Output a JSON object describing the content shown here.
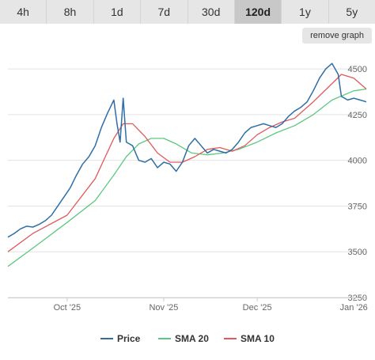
{
  "tabs": [
    {
      "label": "4h"
    },
    {
      "label": "8h"
    },
    {
      "label": "1d"
    },
    {
      "label": "7d"
    },
    {
      "label": "30d"
    },
    {
      "label": "120d",
      "active": true
    },
    {
      "label": "1y"
    },
    {
      "label": "5y"
    }
  ],
  "remove_graph_label": "remove graph",
  "chart_data": {
    "type": "line",
    "x_unit": "date",
    "x_range": [
      "2025-09-12",
      "2026-01-05"
    ],
    "ylim": [
      3250,
      4600
    ],
    "y_ticks": [
      3250,
      3500,
      3750,
      4000,
      4250,
      4500
    ],
    "x_ticks": [
      {
        "label": "Oct '25",
        "date": "2025-10-01"
      },
      {
        "label": "Nov '25",
        "date": "2025-11-01"
      },
      {
        "label": "Dec '25",
        "date": "2025-12-01"
      },
      {
        "label": "Jan '26",
        "date": "2026-01-01"
      }
    ],
    "gridlines": true,
    "legend_position": "bottom",
    "series": [
      {
        "name": "Price",
        "color": "#2f6ea5",
        "points": [
          [
            "2025-09-12",
            3580
          ],
          [
            "2025-09-14",
            3600
          ],
          [
            "2025-09-16",
            3625
          ],
          [
            "2025-09-18",
            3640
          ],
          [
            "2025-09-20",
            3635
          ],
          [
            "2025-09-22",
            3650
          ],
          [
            "2025-09-24",
            3670
          ],
          [
            "2025-09-26",
            3700
          ],
          [
            "2025-09-28",
            3750
          ],
          [
            "2025-09-30",
            3800
          ],
          [
            "2025-10-02",
            3850
          ],
          [
            "2025-10-04",
            3920
          ],
          [
            "2025-10-06",
            3980
          ],
          [
            "2025-10-08",
            4020
          ],
          [
            "2025-10-10",
            4080
          ],
          [
            "2025-10-12",
            4180
          ],
          [
            "2025-10-14",
            4260
          ],
          [
            "2025-10-16",
            4330
          ],
          [
            "2025-10-17",
            4200
          ],
          [
            "2025-10-18",
            4100
          ],
          [
            "2025-10-19",
            4340
          ],
          [
            "2025-10-20",
            4100
          ],
          [
            "2025-10-22",
            4080
          ],
          [
            "2025-10-24",
            4000
          ],
          [
            "2025-10-26",
            3990
          ],
          [
            "2025-10-28",
            4010
          ],
          [
            "2025-10-30",
            3960
          ],
          [
            "2025-11-01",
            3990
          ],
          [
            "2025-11-03",
            3980
          ],
          [
            "2025-11-05",
            3940
          ],
          [
            "2025-11-07",
            3990
          ],
          [
            "2025-11-09",
            4080
          ],
          [
            "2025-11-11",
            4120
          ],
          [
            "2025-11-13",
            4080
          ],
          [
            "2025-11-15",
            4040
          ],
          [
            "2025-11-17",
            4060
          ],
          [
            "2025-11-19",
            4050
          ],
          [
            "2025-11-21",
            4040
          ],
          [
            "2025-11-23",
            4060
          ],
          [
            "2025-11-25",
            4100
          ],
          [
            "2025-11-27",
            4150
          ],
          [
            "2025-11-29",
            4180
          ],
          [
            "2025-12-01",
            4190
          ],
          [
            "2025-12-03",
            4200
          ],
          [
            "2025-12-05",
            4190
          ],
          [
            "2025-12-07",
            4180
          ],
          [
            "2025-12-09",
            4200
          ],
          [
            "2025-12-11",
            4240
          ],
          [
            "2025-12-13",
            4270
          ],
          [
            "2025-12-15",
            4290
          ],
          [
            "2025-12-17",
            4320
          ],
          [
            "2025-12-19",
            4380
          ],
          [
            "2025-12-21",
            4450
          ],
          [
            "2025-12-23",
            4500
          ],
          [
            "2025-12-25",
            4530
          ],
          [
            "2025-12-27",
            4470
          ],
          [
            "2025-12-28",
            4350
          ],
          [
            "2025-12-30",
            4330
          ],
          [
            "2026-01-01",
            4340
          ],
          [
            "2026-01-03",
            4330
          ],
          [
            "2026-01-05",
            4320
          ]
        ]
      },
      {
        "name": "SMA 20",
        "color": "#5cc87f",
        "points": [
          [
            "2025-09-12",
            3420
          ],
          [
            "2025-09-20",
            3520
          ],
          [
            "2025-10-01",
            3660
          ],
          [
            "2025-10-10",
            3780
          ],
          [
            "2025-10-16",
            3920
          ],
          [
            "2025-10-20",
            4020
          ],
          [
            "2025-10-24",
            4090
          ],
          [
            "2025-10-28",
            4120
          ],
          [
            "2025-11-01",
            4120
          ],
          [
            "2025-11-05",
            4090
          ],
          [
            "2025-11-10",
            4040
          ],
          [
            "2025-11-15",
            4030
          ],
          [
            "2025-11-20",
            4040
          ],
          [
            "2025-11-25",
            4060
          ],
          [
            "2025-12-01",
            4100
          ],
          [
            "2025-12-07",
            4150
          ],
          [
            "2025-12-13",
            4190
          ],
          [
            "2025-12-19",
            4250
          ],
          [
            "2025-12-25",
            4330
          ],
          [
            "2026-01-01",
            4380
          ],
          [
            "2026-01-05",
            4390
          ]
        ]
      },
      {
        "name": "SMA 10",
        "color": "#e05a5a",
        "points": [
          [
            "2025-09-12",
            3500
          ],
          [
            "2025-09-20",
            3600
          ],
          [
            "2025-10-01",
            3700
          ],
          [
            "2025-10-10",
            3900
          ],
          [
            "2025-10-16",
            4120
          ],
          [
            "2025-10-19",
            4200
          ],
          [
            "2025-10-22",
            4200
          ],
          [
            "2025-10-26",
            4130
          ],
          [
            "2025-10-30",
            4040
          ],
          [
            "2025-11-03",
            3990
          ],
          [
            "2025-11-07",
            3990
          ],
          [
            "2025-11-11",
            4020
          ],
          [
            "2025-11-15",
            4060
          ],
          [
            "2025-11-19",
            4070
          ],
          [
            "2025-11-23",
            4050
          ],
          [
            "2025-11-27",
            4080
          ],
          [
            "2025-12-01",
            4140
          ],
          [
            "2025-12-05",
            4180
          ],
          [
            "2025-12-09",
            4210
          ],
          [
            "2025-12-13",
            4230
          ],
          [
            "2025-12-19",
            4320
          ],
          [
            "2025-12-25",
            4420
          ],
          [
            "2025-12-28",
            4470
          ],
          [
            "2026-01-01",
            4450
          ],
          [
            "2026-01-05",
            4390
          ]
        ]
      }
    ]
  }
}
